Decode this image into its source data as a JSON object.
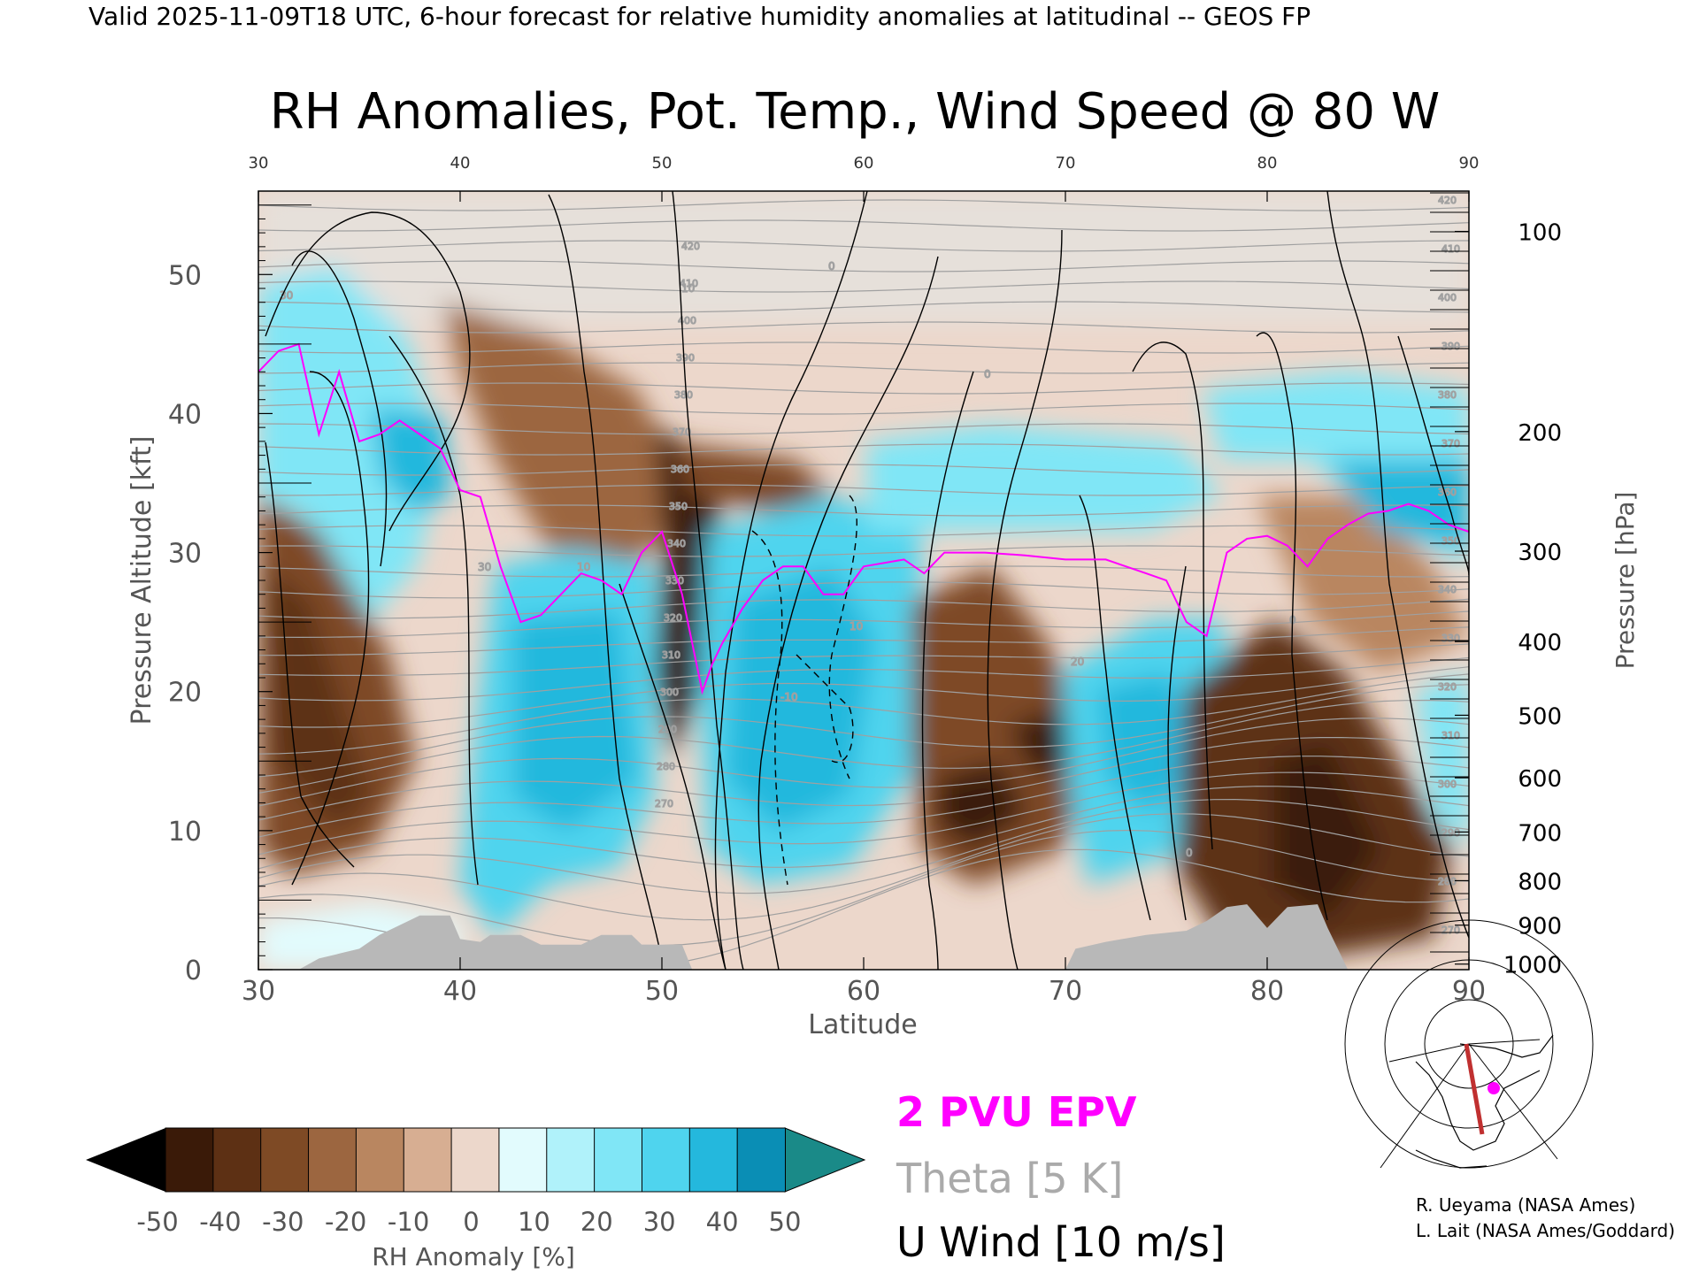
{
  "header": {
    "valid_line": "Valid 2025-11-09T18 UTC, 6-hour forecast for relative humidity anomalies at latitudinal -- GEOS FP",
    "title": "RH Anomalies, Pot. Temp., Wind Speed @ 80 W"
  },
  "chart_data": {
    "type": "heatmap",
    "xlabel": "Latitude",
    "ylabel": "Pressure Altitude [kft]",
    "y2label": "Pressure [hPa]",
    "xlim": [
      30,
      90
    ],
    "ylim": [
      0,
      56
    ],
    "x_ticks": [
      30,
      40,
      50,
      60,
      70,
      80,
      90
    ],
    "top_ticks": [
      30,
      40,
      50,
      60,
      70,
      80,
      90
    ],
    "y_ticks": [
      0,
      10,
      20,
      30,
      40,
      50
    ],
    "pressure_ticks": [
      {
        "label": "100",
        "kft": 53.1
      },
      {
        "label": "200",
        "kft": 38.7
      },
      {
        "label": "300",
        "kft": 30.1
      },
      {
        "label": "400",
        "kft": 23.6
      },
      {
        "label": "500",
        "kft": 18.3
      },
      {
        "label": "600",
        "kft": 13.8
      },
      {
        "label": "700",
        "kft": 9.9
      },
      {
        "label": "800",
        "kft": 6.4
      },
      {
        "label": "900",
        "kft": 3.2
      },
      {
        "label": "1000",
        "kft": 0.4
      }
    ],
    "colorbar": {
      "label": "RH Anomaly [%]",
      "ticks": [
        "-50",
        "-40",
        "-30",
        "-20",
        "-10",
        "0",
        "10",
        "20",
        "30",
        "40",
        "50"
      ],
      "colors": [
        "#3a1a08",
        "#5d3014",
        "#7e4a25",
        "#9c6640",
        "#b98660",
        "#d7ae92",
        "#ecd7cb",
        "#e2fbfd",
        "#b0f2fa",
        "#80e6f6",
        "#4fd4ee",
        "#24b8dd",
        "#0a8eb5"
      ],
      "under_color": "#000000",
      "over_color": "#1a8a88"
    },
    "legend": [
      {
        "label": "2 PVU EPV",
        "color": "#ff00ff"
      },
      {
        "label": "Theta [5 K]",
        "color": "#aaaaaa"
      },
      {
        "label": "U Wind [10 m/s]",
        "color": "#000000"
      }
    ],
    "theta_labels": [
      "420",
      "410",
      "400",
      "390",
      "380",
      "370",
      "360",
      "350",
      "340",
      "330",
      "320",
      "310",
      "300",
      "290",
      "280",
      "270",
      "260"
    ],
    "wind_labels": [
      "0",
      "10",
      "20",
      "30",
      "-10"
    ],
    "terrain": [
      [
        32,
        0
      ],
      [
        33,
        0.8
      ],
      [
        35,
        1.5
      ],
      [
        36,
        2.5
      ],
      [
        37,
        3.2
      ],
      [
        38,
        3.9
      ],
      [
        39.5,
        3.9
      ],
      [
        40,
        2.2
      ],
      [
        41,
        2.0
      ],
      [
        41.5,
        2.5
      ],
      [
        43,
        2.5
      ],
      [
        44,
        1.8
      ],
      [
        46,
        1.8
      ],
      [
        47,
        2.5
      ],
      [
        48.5,
        2.5
      ],
      [
        49,
        1.8
      ],
      [
        51,
        1.8
      ],
      [
        51.5,
        0
      ],
      [
        70,
        0
      ],
      [
        70.5,
        1.5
      ],
      [
        72,
        2.0
      ],
      [
        74,
        2.5
      ],
      [
        76,
        2.8
      ],
      [
        77,
        3.5
      ],
      [
        78,
        4.5
      ],
      [
        79,
        4.7
      ],
      [
        80,
        3.0
      ],
      [
        81,
        4.5
      ],
      [
        82.5,
        4.7
      ],
      [
        83,
        3.0
      ],
      [
        84,
        0
      ],
      [
        90,
        0
      ]
    ],
    "epv_2pvu": [
      [
        30,
        43
      ],
      [
        31,
        44.5
      ],
      [
        32,
        45
      ],
      [
        33,
        38.5
      ],
      [
        34,
        43
      ],
      [
        35,
        38
      ],
      [
        36,
        38.5
      ],
      [
        37,
        39.5
      ],
      [
        38,
        38.5
      ],
      [
        39,
        37.5
      ],
      [
        40,
        34.5
      ],
      [
        41,
        34
      ],
      [
        42,
        29
      ],
      [
        43,
        25
      ],
      [
        44,
        25.5
      ],
      [
        45,
        27
      ],
      [
        46,
        28.5
      ],
      [
        47,
        28
      ],
      [
        48,
        27
      ],
      [
        49,
        30
      ],
      [
        50,
        31.5
      ],
      [
        51,
        27
      ],
      [
        52,
        20
      ],
      [
        52.5,
        22
      ],
      [
        53,
        23.5
      ],
      [
        54,
        26
      ],
      [
        55,
        28
      ],
      [
        56,
        29
      ],
      [
        57,
        29
      ],
      [
        58,
        27
      ],
      [
        59,
        27
      ],
      [
        60,
        29
      ],
      [
        62,
        29.5
      ],
      [
        63,
        28.5
      ],
      [
        64,
        30
      ],
      [
        66,
        30
      ],
      [
        68,
        29.8
      ],
      [
        70,
        29.5
      ],
      [
        72,
        29.5
      ],
      [
        74,
        28.5
      ],
      [
        75,
        28
      ],
      [
        76,
        25
      ],
      [
        77,
        24
      ],
      [
        78,
        30
      ],
      [
        79,
        31
      ],
      [
        80,
        31.2
      ],
      [
        81,
        30.5
      ],
      [
        82,
        29
      ],
      [
        83,
        31
      ],
      [
        84,
        32
      ],
      [
        85,
        32.8
      ],
      [
        86,
        33
      ],
      [
        87,
        33.5
      ],
      [
        88,
        33
      ],
      [
        89,
        32
      ],
      [
        90,
        31.5
      ]
    ],
    "source_credits": [
      "R. Ueyama (NASA Ames)",
      "L. Lait (NASA Ames/Goddard)"
    ]
  }
}
